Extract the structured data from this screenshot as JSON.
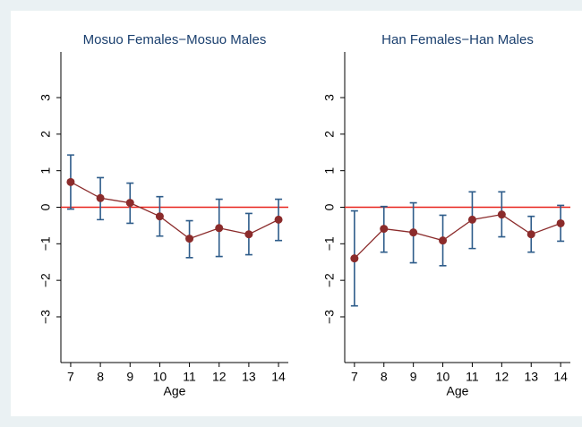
{
  "chart_data": [
    {
      "type": "line",
      "title": "Mosuo Females−Mosuo Males",
      "xlabel": "Age",
      "x": [
        7,
        8,
        9,
        10,
        11,
        12,
        13,
        14
      ],
      "values": [
        0.69,
        0.25,
        0.12,
        -0.25,
        -0.86,
        -0.57,
        -0.74,
        -0.34
      ],
      "ci_low": [
        -0.05,
        -0.34,
        -0.44,
        -0.79,
        -1.38,
        -1.35,
        -1.3,
        -0.91
      ],
      "ci_high": [
        1.43,
        0.81,
        0.66,
        0.29,
        -0.37,
        0.22,
        -0.17,
        0.22
      ],
      "color": "#8b2b2b",
      "error_color": "#2e5c8a",
      "reference_line": {
        "value": 0,
        "color": "#e8231c"
      },
      "xlim": [
        6.67,
        14.33
      ],
      "xticks": [
        7,
        8,
        9,
        10,
        11,
        12,
        13,
        14
      ],
      "ylim": [
        -4.25,
        4.25
      ],
      "yticks": [
        {
          "value": -3,
          "label": "−3"
        },
        {
          "value": -2,
          "label": "−2"
        },
        {
          "value": -1,
          "label": "−1"
        },
        0,
        1,
        2,
        3
      ],
      "grid": false
    },
    {
      "type": "line",
      "title": "Han Females−Han Males",
      "xlabel": "Age",
      "x": [
        7,
        8,
        9,
        10,
        11,
        12,
        13,
        14
      ],
      "values": [
        -1.4,
        -0.59,
        -0.69,
        -0.91,
        -0.34,
        -0.2,
        -0.74,
        -0.44
      ],
      "ci_low": [
        -2.7,
        -1.23,
        -1.52,
        -1.6,
        -1.13,
        -0.81,
        -1.23,
        -0.93
      ],
      "ci_high": [
        -0.1,
        0.02,
        0.12,
        -0.22,
        0.42,
        0.42,
        -0.25,
        0.05
      ],
      "color": "#8b2b2b",
      "error_color": "#2e5c8a",
      "reference_line": {
        "value": 0,
        "color": "#e8231c"
      },
      "xlim": [
        6.67,
        14.33
      ],
      "xticks": [
        7,
        8,
        9,
        10,
        11,
        12,
        13,
        14
      ],
      "ylim": [
        -4.25,
        4.25
      ],
      "yticks": [
        {
          "value": -3,
          "label": "−3"
        },
        {
          "value": -2,
          "label": "−2"
        },
        {
          "value": -1,
          "label": "−1"
        },
        0,
        1,
        2,
        3
      ],
      "grid": false
    }
  ]
}
